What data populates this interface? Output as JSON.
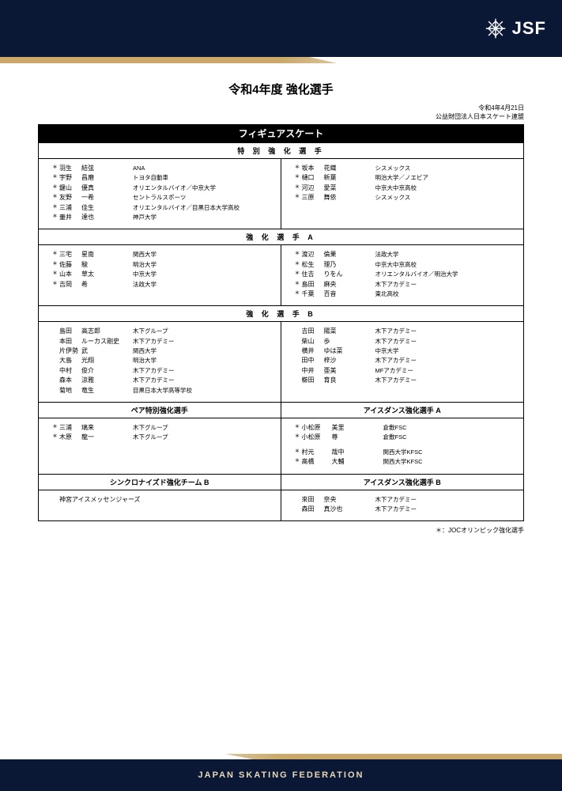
{
  "header": {
    "logo_text": "JSF"
  },
  "page_title": "令和4年度 強化選手",
  "date_line": "令和4年4月21日",
  "org_line": "公益財団法人日本スケート連盟",
  "black_bar": "フィギュアスケート",
  "footnote": "＊：JOCオリンピック強化選手",
  "footer": "JAPAN SKATING FEDERATION",
  "section1": {
    "header": "特 別 強 化 選 手",
    "left": [
      {
        "s": "＊",
        "su": "羽生",
        "g": "結弦",
        "a": "ANA"
      },
      {
        "s": "＊",
        "su": "宇野",
        "g": "昌磨",
        "a": "トヨタ自動車"
      },
      {
        "s": "＊",
        "su": "鍵山",
        "g": "優真",
        "a": "オリエンタルバイオ／中京大学"
      },
      {
        "s": "＊",
        "su": "友野",
        "g": "一希",
        "a": "セントラルスポーツ"
      },
      {
        "s": "＊",
        "su": "三浦",
        "g": "佳生",
        "a": "オリエンタルバイオ／目黒日本大学高校"
      },
      {
        "s": "＊",
        "su": "壷井",
        "g": "達也",
        "a": "神戸大学"
      }
    ],
    "right": [
      {
        "s": "＊",
        "su": "坂本",
        "g": "花織",
        "a": "シスメックス"
      },
      {
        "s": "＊",
        "su": "樋口",
        "g": "新葉",
        "a": "明治大学／ノエビア"
      },
      {
        "s": "＊",
        "su": "河辺",
        "g": "愛菜",
        "a": "中京大中京高校"
      },
      {
        "s": "＊",
        "su": "三原",
        "g": "舞依",
        "a": "シスメックス"
      }
    ]
  },
  "section2": {
    "header": "強 化 選 手 A",
    "left": [
      {
        "s": "＊",
        "su": "三宅",
        "g": "星南",
        "a": "関西大学"
      },
      {
        "s": "＊",
        "su": "佐藤",
        "g": "駿",
        "a": "明治大学"
      },
      {
        "s": "＊",
        "su": "山本",
        "g": "草太",
        "a": "中京大学"
      },
      {
        "s": "＊",
        "su": "吉岡",
        "g": "希",
        "a": "法政大学"
      }
    ],
    "right": [
      {
        "s": "＊",
        "su": "渡辺",
        "g": "倫果",
        "a": "法政大学"
      },
      {
        "s": "＊",
        "su": "松生",
        "g": "理乃",
        "a": "中京大中京高校"
      },
      {
        "s": "＊",
        "su": "住吉",
        "g": "りをん",
        "a": "オリエンタルバイオ／明治大学"
      },
      {
        "s": "＊",
        "su": "島田",
        "g": "麻央",
        "a": "木下アカデミー"
      },
      {
        "s": "＊",
        "su": "千葉",
        "g": "百音",
        "a": "東北高校"
      }
    ]
  },
  "section3": {
    "header": "強 化 選 手 B",
    "left": [
      {
        "s": "",
        "su": "島田",
        "g": "高志郎",
        "a": "木下グループ"
      },
      {
        "s": "",
        "su": "本田",
        "g": "ルーカス剛史",
        "a": "木下アカデミー"
      },
      {
        "s": "",
        "su": "片伊勢",
        "g": "武",
        "a": "関西大学"
      },
      {
        "s": "",
        "su": "大島",
        "g": "光翔",
        "a": "明治大学"
      },
      {
        "s": "",
        "su": "中村",
        "g": "俊介",
        "a": "木下アカデミー"
      },
      {
        "s": "",
        "su": "森本",
        "g": "涼雅",
        "a": "木下アカデミー"
      },
      {
        "s": "",
        "su": "菊地",
        "g": "竜生",
        "a": "目黒日本大学高等学校"
      }
    ],
    "right": [
      {
        "s": "",
        "su": "吉田",
        "g": "陽菜",
        "a": "木下アカデミー"
      },
      {
        "s": "",
        "su": "柴山",
        "g": "歩",
        "a": "木下アカデミー"
      },
      {
        "s": "",
        "su": "横井",
        "g": "ゆは菜",
        "a": "中京大学"
      },
      {
        "s": "",
        "su": "田中",
        "g": "梓沙",
        "a": "木下アカデミー"
      },
      {
        "s": "",
        "su": "中井",
        "g": "亜美",
        "a": "MFアカデミー"
      },
      {
        "s": "",
        "su": "櫛田",
        "g": "育良",
        "a": "木下アカデミー"
      }
    ]
  },
  "section4": {
    "header_left": "ペア特別強化選手",
    "header_right": "アイスダンス強化選手 A",
    "left": [
      {
        "s": "＊",
        "su": "三浦",
        "g": "璃来",
        "a": "木下グループ"
      },
      {
        "s": "＊",
        "su": "木原",
        "g": "龍一",
        "a": "木下グループ"
      }
    ],
    "right": [
      {
        "s": "＊",
        "su": "小松原",
        "g": "美里",
        "a": "倉敷FSC"
      },
      {
        "s": "＊",
        "su": "小松原",
        "g": "尊",
        "a": "倉敷FSC"
      }
    ],
    "right2": [
      {
        "s": "＊",
        "su": "村元",
        "g": "哉中",
        "a": "関西大学KFSC"
      },
      {
        "s": "＊",
        "su": "髙橋",
        "g": "大輔",
        "a": "関西大学KFSC"
      }
    ]
  },
  "section5": {
    "header_left": "シンクロナイズド強化チーム B",
    "header_right": "アイスダンス強化選手 B",
    "left_text": "神宮アイスメッセンジャーズ",
    "right": [
      {
        "s": "",
        "su": "來田",
        "g": "奈央",
        "a": "木下アカデミー"
      },
      {
        "s": "",
        "su": "森田",
        "g": "真沙也",
        "a": "木下アカデミー"
      }
    ]
  }
}
